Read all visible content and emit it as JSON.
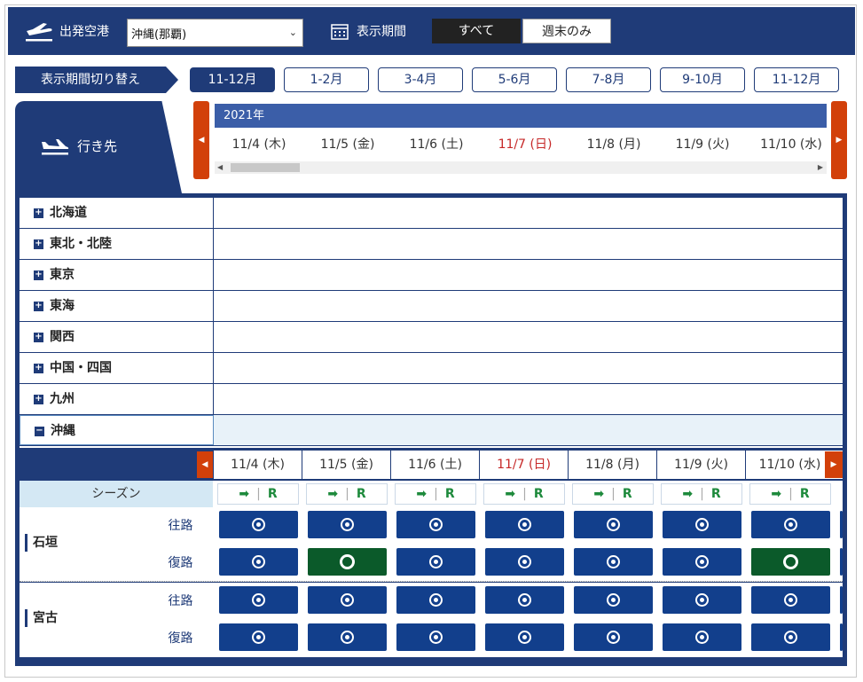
{
  "header": {
    "departure_label": "出発空港",
    "departure_value": "沖縄(那覇)",
    "period_label": "表示期間",
    "seg_all": "すべて",
    "seg_weekend": "週末のみ"
  },
  "period_switch": {
    "label": "表示期間切り替え",
    "tabs": [
      "11-12月",
      "1-2月",
      "3-4月",
      "5-6月",
      "7-8月",
      "9-10月",
      "11-12月"
    ],
    "active_index": 0
  },
  "destination_label": "行き先",
  "year": "2021年",
  "dates": [
    "11/4 (木)",
    "11/5 (金)",
    "11/6 (土)",
    "11/7 (日)",
    "11/8 (月)",
    "11/9 (火)",
    "11/10 (水)"
  ],
  "sunday_index": 3,
  "regions": [
    {
      "name": "北海道",
      "state": "collapsed"
    },
    {
      "name": "東北・北陸",
      "state": "collapsed"
    },
    {
      "name": "東京",
      "state": "collapsed"
    },
    {
      "name": "東海",
      "state": "collapsed"
    },
    {
      "name": "関西",
      "state": "collapsed"
    },
    {
      "name": "中国・四国",
      "state": "collapsed"
    },
    {
      "name": "九州",
      "state": "collapsed"
    },
    {
      "name": "沖縄",
      "state": "expanded"
    }
  ],
  "season": {
    "label": "シーズン",
    "cell_r": "R"
  },
  "airports": [
    {
      "name": "石垣",
      "outbound_label": "往路",
      "return_label": "復路",
      "outbound": [
        "available",
        "available",
        "available",
        "available",
        "available",
        "available",
        "available"
      ],
      "return": [
        "available",
        "plenty",
        "available",
        "available",
        "available",
        "available",
        "plenty"
      ]
    },
    {
      "name": "宮古",
      "outbound_label": "往路",
      "return_label": "復路",
      "outbound": [
        "available",
        "available",
        "available",
        "available",
        "available",
        "available",
        "available"
      ],
      "return": [
        "available",
        "available",
        "available",
        "available",
        "available",
        "available",
        "available"
      ]
    }
  ],
  "colors": {
    "navy": "#1f3b78",
    "accent_orange": "#d2400a",
    "cell_blue": "#123f8c",
    "cell_green": "#0b5a2a",
    "sunday_red": "#c62828"
  }
}
